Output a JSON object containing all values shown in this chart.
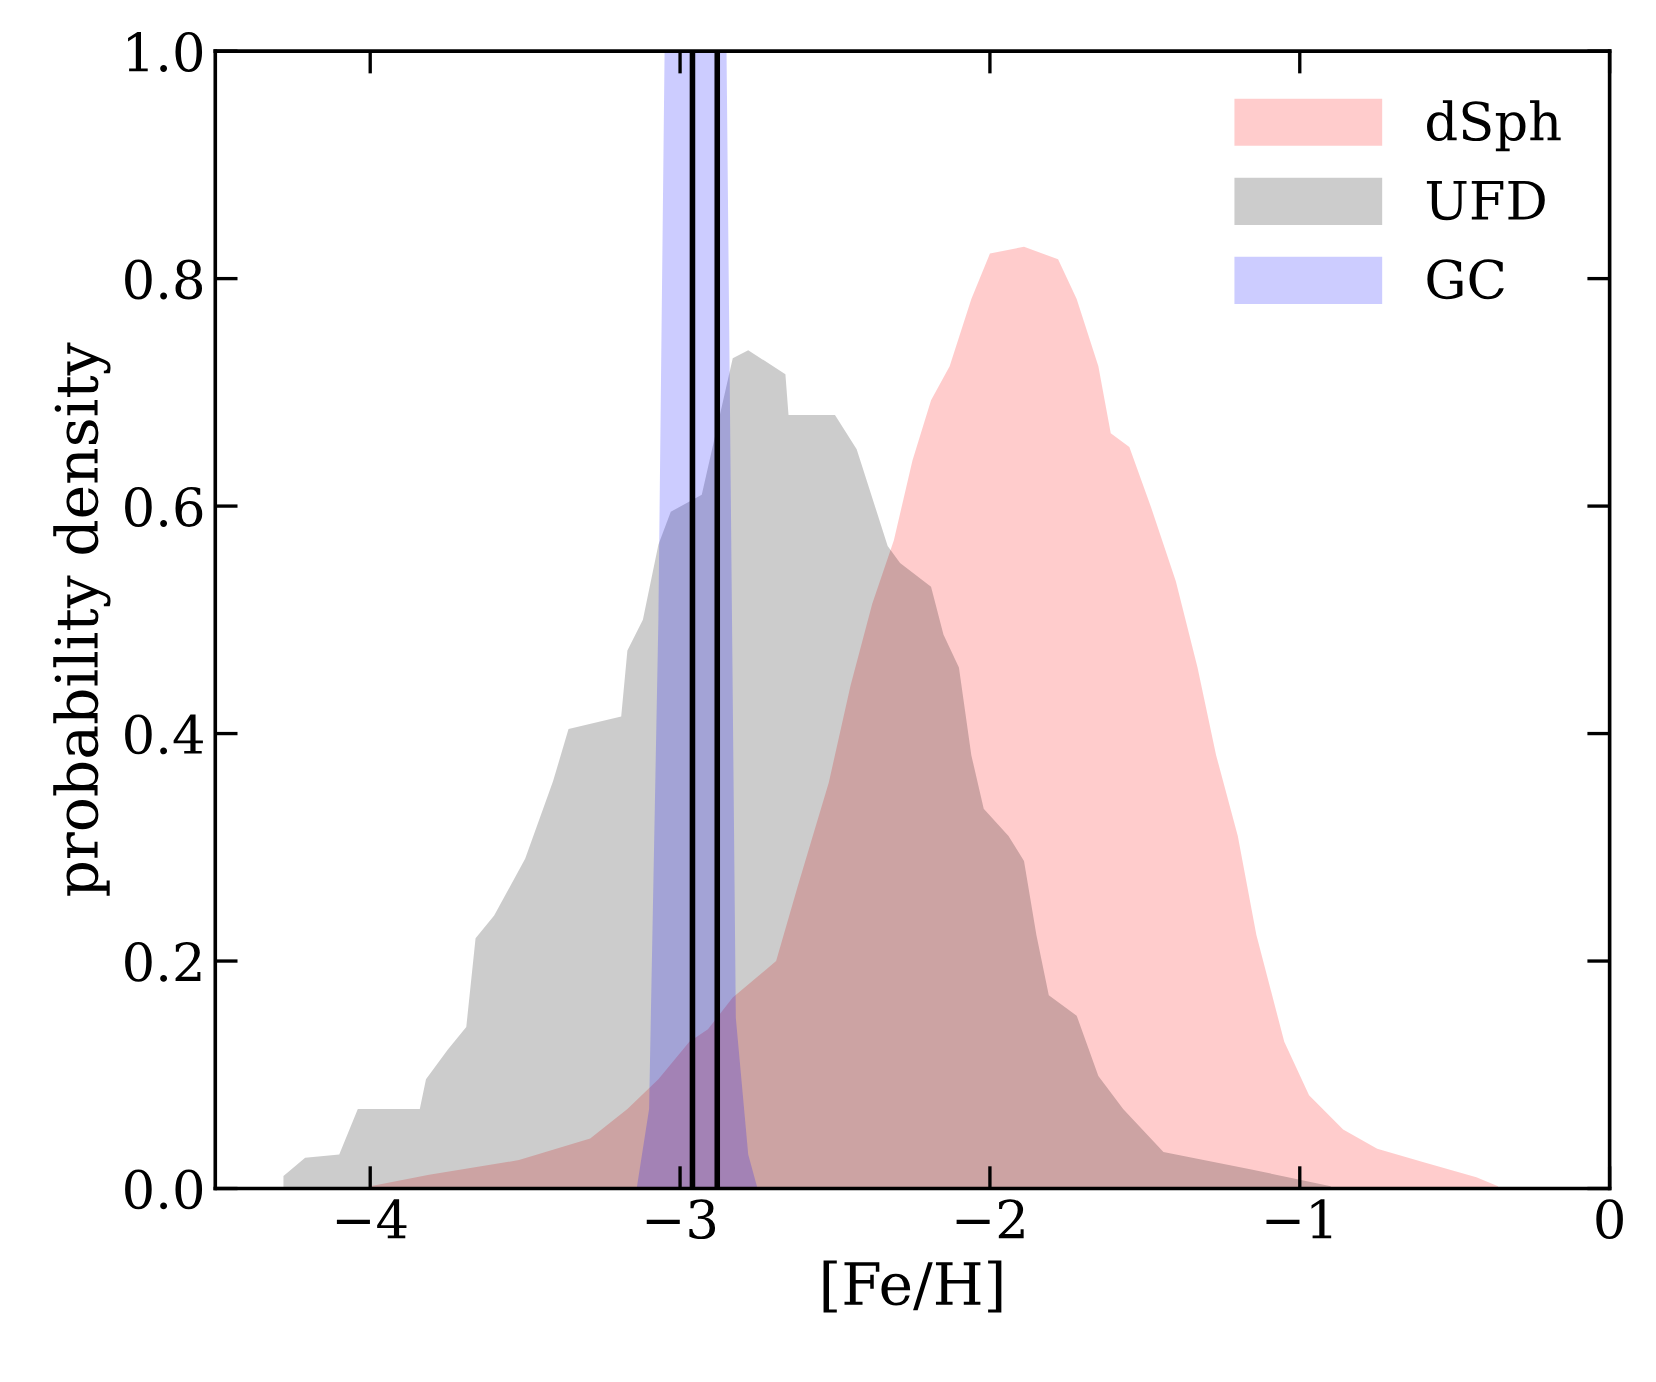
{
  "chart_data": {
    "type": "area",
    "xlabel": "[Fe/H]",
    "ylabel": "probability density",
    "xlim": [
      -4.5,
      0
    ],
    "ylim": [
      0,
      1.0
    ],
    "xticks": [
      {
        "value": -4,
        "label": "−4"
      },
      {
        "value": -3,
        "label": "−3"
      },
      {
        "value": -2,
        "label": "−2"
      },
      {
        "value": -1,
        "label": "−1"
      },
      0
    ],
    "yticks": [
      {
        "value": 0,
        "label": "0.0"
      },
      0.2,
      0.4,
      0.6,
      0.8,
      {
        "value": 1.0,
        "label": "1.0"
      }
    ],
    "grid": false,
    "legend": "top right",
    "series": [
      {
        "name": "dSph",
        "color": "#ffcccc",
        "x": [
          -4.0,
          -3.81,
          -3.52,
          -3.29,
          -3.17,
          -3.07,
          -2.97,
          -2.91,
          -2.83,
          -2.69,
          -2.62,
          -2.52,
          -2.45,
          -2.38,
          -2.31,
          -2.25,
          -2.19,
          -2.13,
          -2.06,
          -2.0,
          -1.89,
          -1.78,
          -1.72,
          -1.65,
          -1.61,
          -1.55,
          -1.48,
          -1.4,
          -1.33,
          -1.27,
          -1.2,
          -1.14,
          -1.05,
          -0.97,
          -0.86,
          -0.75,
          -0.6,
          -0.43,
          -0.36
        ],
        "values": [
          0.002,
          0.012,
          0.025,
          0.044,
          0.07,
          0.096,
          0.129,
          0.14,
          0.168,
          0.2,
          0.266,
          0.357,
          0.442,
          0.514,
          0.57,
          0.64,
          0.693,
          0.723,
          0.782,
          0.822,
          0.828,
          0.817,
          0.782,
          0.723,
          0.664,
          0.652,
          0.599,
          0.534,
          0.458,
          0.381,
          0.31,
          0.223,
          0.129,
          0.082,
          0.052,
          0.035,
          0.023,
          0.01,
          0.002
        ]
      },
      {
        "name": "UFD",
        "color": "#cccccc",
        "x": [
          -4.28,
          -4.21,
          -4.1,
          -4.04,
          -3.84,
          -3.82,
          -3.75,
          -3.69,
          -3.66,
          -3.6,
          -3.5,
          -3.41,
          -3.36,
          -3.19,
          -3.17,
          -3.12,
          -3.07,
          -3.03,
          -2.93,
          -2.83,
          -2.78,
          -2.66,
          -2.65,
          -2.5,
          -2.43,
          -2.33,
          -2.29,
          -2.19,
          -2.15,
          -2.1,
          -2.06,
          -2.02,
          -1.94,
          -1.89,
          -1.85,
          -1.81,
          -1.72,
          -1.65,
          -1.57,
          -1.44,
          -1.16,
          -0.9
        ],
        "values": [
          0.011,
          0.027,
          0.03,
          0.07,
          0.07,
          0.096,
          0.122,
          0.142,
          0.22,
          0.24,
          0.29,
          0.358,
          0.404,
          0.415,
          0.473,
          0.5,
          0.566,
          0.595,
          0.61,
          0.73,
          0.737,
          0.716,
          0.68,
          0.68,
          0.65,
          0.565,
          0.55,
          0.529,
          0.487,
          0.458,
          0.381,
          0.334,
          0.31,
          0.288,
          0.223,
          0.17,
          0.152,
          0.099,
          0.07,
          0.032,
          0.017,
          0.002
        ]
      },
      {
        "name": "GC",
        "color": "#ccccff",
        "x": [
          -3.14,
          -3.1,
          -3.07,
          -3.05,
          -2.85,
          -2.82,
          -2.78,
          -2.75
        ],
        "values": [
          0.0,
          0.07,
          0.5,
          1.0,
          1.0,
          0.15,
          0.03,
          0.0
        ]
      }
    ],
    "ref_lines": [
      {
        "axis": "x",
        "value": -2.96,
        "color": "#000000"
      },
      {
        "axis": "x",
        "value": -2.88,
        "color": "#000000"
      }
    ]
  }
}
